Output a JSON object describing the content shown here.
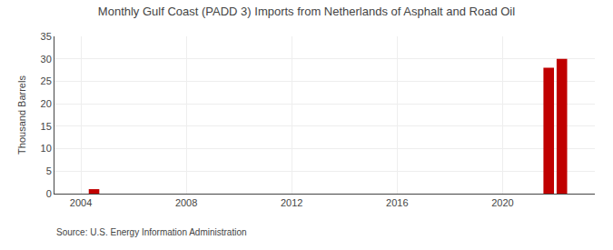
{
  "chart_data": {
    "type": "bar",
    "title": "Monthly Gulf Coast (PADD 3) Imports from Netherlands of Asphalt and Road Oil",
    "ylabel": "Thousand Barrels",
    "source": "Source: U.S. Energy Information Administration",
    "x": [
      2004.5,
      2021.75,
      2022.25
    ],
    "values": [
      1.0,
      28.0,
      30.0
    ],
    "color": "#c00000",
    "xlim": [
      2003.0,
      2023.5
    ],
    "xticks": [
      2004,
      2008,
      2012,
      2016,
      2020
    ],
    "ylim": [
      0,
      35
    ],
    "yticks": [
      0,
      5,
      10,
      15,
      20,
      25,
      30,
      35
    ],
    "grid": true
  }
}
